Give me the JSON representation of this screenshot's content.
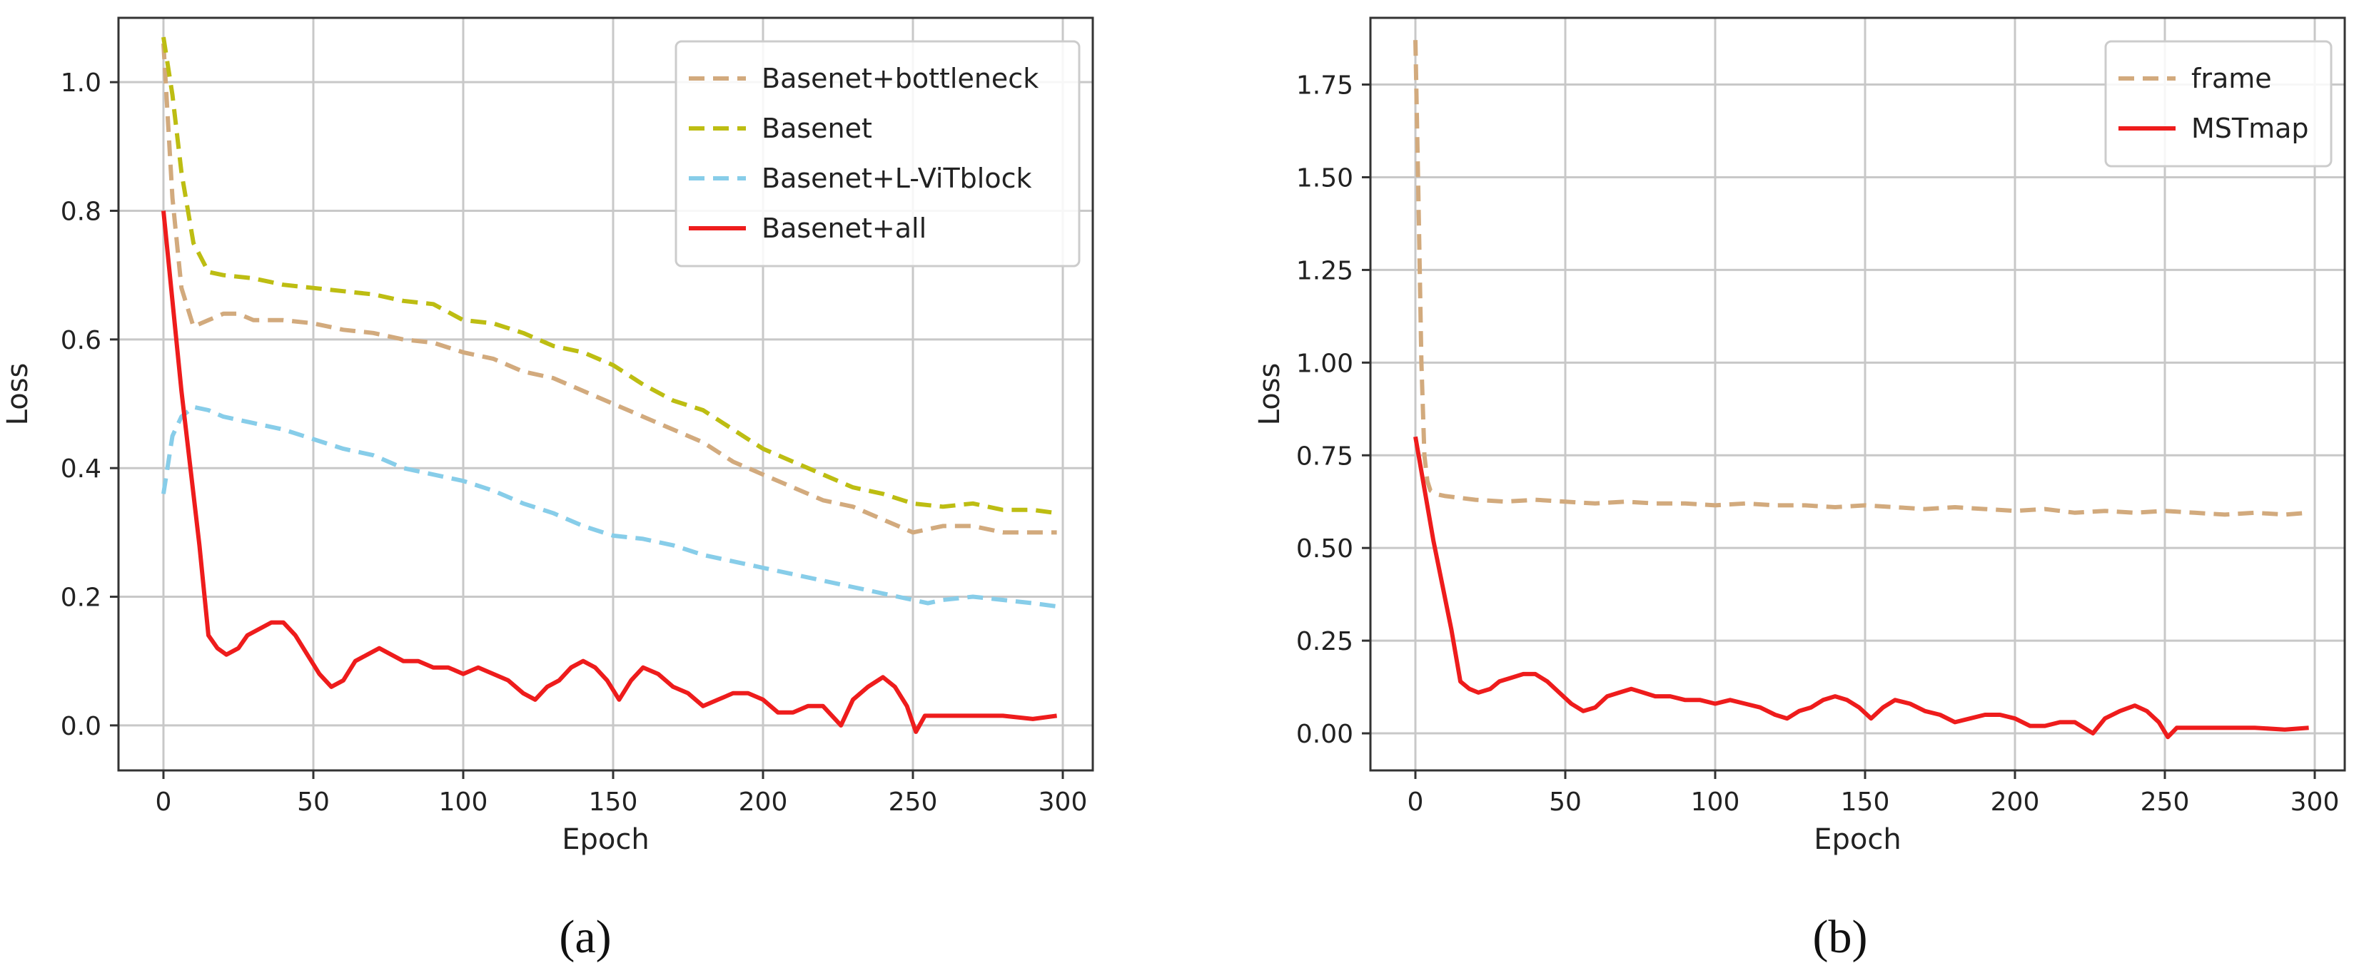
{
  "chart_data": [
    {
      "type": "line",
      "caption": "(a)",
      "xlabel": "Epoch",
      "ylabel": "Loss",
      "xlim": [
        -15,
        310
      ],
      "ylim": [
        -0.07,
        1.1
      ],
      "xticks": [
        0,
        50,
        100,
        150,
        200,
        250,
        300
      ],
      "yticks": [
        0.0,
        0.2,
        0.4,
        0.6,
        0.8,
        1.0
      ],
      "ytick_labels": [
        "0.0",
        "0.2",
        "0.4",
        "0.6",
        "0.8",
        "1.0"
      ],
      "grid": true,
      "legend_position": "top-right",
      "series": [
        {
          "name": "Basenet+bottleneck",
          "color": "#d2aa7d",
          "dash": true,
          "x": [
            0,
            3,
            6,
            10,
            15,
            20,
            25,
            30,
            40,
            50,
            60,
            70,
            80,
            90,
            100,
            110,
            120,
            130,
            140,
            150,
            160,
            170,
            180,
            190,
            200,
            210,
            220,
            230,
            240,
            250,
            260,
            270,
            280,
            290,
            298
          ],
          "y": [
            1.06,
            0.82,
            0.68,
            0.62,
            0.63,
            0.64,
            0.64,
            0.63,
            0.63,
            0.625,
            0.615,
            0.61,
            0.6,
            0.595,
            0.58,
            0.57,
            0.55,
            0.54,
            0.52,
            0.5,
            0.48,
            0.46,
            0.44,
            0.41,
            0.39,
            0.37,
            0.35,
            0.34,
            0.32,
            0.3,
            0.31,
            0.31,
            0.3,
            0.3,
            0.3
          ]
        },
        {
          "name": "Basenet",
          "color": "#bdbd12",
          "dash": true,
          "x": [
            0,
            3,
            6,
            10,
            15,
            20,
            30,
            40,
            50,
            60,
            70,
            80,
            90,
            100,
            110,
            120,
            130,
            140,
            150,
            160,
            170,
            180,
            190,
            200,
            210,
            220,
            230,
            240,
            250,
            260,
            270,
            280,
            290,
            298
          ],
          "y": [
            1.07,
            0.98,
            0.86,
            0.75,
            0.705,
            0.7,
            0.695,
            0.685,
            0.68,
            0.675,
            0.67,
            0.66,
            0.655,
            0.63,
            0.625,
            0.61,
            0.59,
            0.58,
            0.56,
            0.53,
            0.505,
            0.49,
            0.46,
            0.43,
            0.41,
            0.39,
            0.37,
            0.36,
            0.345,
            0.34,
            0.345,
            0.335,
            0.335,
            0.33
          ]
        },
        {
          "name": "Basenet+L-ViTblock",
          "color": "#87cde9",
          "dash": true,
          "x": [
            0,
            3,
            6,
            10,
            15,
            20,
            30,
            40,
            50,
            60,
            70,
            80,
            90,
            100,
            110,
            120,
            130,
            140,
            150,
            160,
            170,
            180,
            190,
            200,
            210,
            220,
            230,
            240,
            250,
            255,
            260,
            270,
            280,
            290,
            298
          ],
          "y": [
            0.36,
            0.45,
            0.48,
            0.495,
            0.49,
            0.48,
            0.47,
            0.46,
            0.445,
            0.43,
            0.42,
            0.4,
            0.39,
            0.38,
            0.365,
            0.345,
            0.33,
            0.31,
            0.295,
            0.29,
            0.28,
            0.265,
            0.255,
            0.245,
            0.235,
            0.225,
            0.215,
            0.205,
            0.195,
            0.19,
            0.195,
            0.2,
            0.195,
            0.19,
            0.185
          ]
        },
        {
          "name": "Basenet+all",
          "color": "#ee1c1c",
          "dash": false,
          "x": [
            0,
            3,
            6,
            9,
            12,
            15,
            18,
            21,
            25,
            28,
            32,
            36,
            40,
            44,
            48,
            52,
            56,
            60,
            64,
            68,
            72,
            76,
            80,
            85,
            90,
            95,
            100,
            105,
            110,
            115,
            120,
            124,
            128,
            132,
            136,
            140,
            144,
            148,
            152,
            156,
            160,
            165,
            170,
            175,
            180,
            185,
            190,
            195,
            200,
            205,
            210,
            215,
            220,
            226,
            230,
            235,
            240,
            244,
            248,
            251,
            254,
            260,
            270,
            280,
            290,
            298
          ],
          "y": [
            0.8,
            0.66,
            0.52,
            0.4,
            0.28,
            0.14,
            0.12,
            0.11,
            0.12,
            0.14,
            0.15,
            0.16,
            0.16,
            0.14,
            0.11,
            0.08,
            0.06,
            0.07,
            0.1,
            0.11,
            0.12,
            0.11,
            0.1,
            0.1,
            0.09,
            0.09,
            0.08,
            0.09,
            0.08,
            0.07,
            0.05,
            0.04,
            0.06,
            0.07,
            0.09,
            0.1,
            0.09,
            0.07,
            0.04,
            0.07,
            0.09,
            0.08,
            0.06,
            0.05,
            0.03,
            0.04,
            0.05,
            0.05,
            0.04,
            0.02,
            0.02,
            0.03,
            0.03,
            0.0,
            0.04,
            0.06,
            0.075,
            0.06,
            0.03,
            -0.01,
            0.015,
            0.015,
            0.015,
            0.015,
            0.01,
            0.015
          ]
        }
      ]
    },
    {
      "type": "line",
      "caption": "(b)",
      "xlabel": "Epoch",
      "ylabel": "Loss",
      "xlim": [
        -15,
        310
      ],
      "ylim": [
        -0.1,
        1.93
      ],
      "xticks": [
        0,
        50,
        100,
        150,
        200,
        250,
        300
      ],
      "yticks": [
        0.0,
        0.25,
        0.5,
        0.75,
        1.0,
        1.25,
        1.5,
        1.75
      ],
      "ytick_labels": [
        "0.00",
        "0.25",
        "0.50",
        "0.75",
        "1.00",
        "1.25",
        "1.50",
        "1.75"
      ],
      "grid": true,
      "legend_position": "top-right",
      "series": [
        {
          "name": "frame",
          "color": "#d2aa7d",
          "dash": true,
          "x": [
            0,
            1,
            2,
            3,
            4,
            5,
            7,
            10,
            15,
            20,
            30,
            40,
            50,
            60,
            70,
            80,
            90,
            100,
            110,
            120,
            130,
            140,
            150,
            160,
            170,
            180,
            190,
            200,
            210,
            220,
            230,
            240,
            250,
            260,
            270,
            280,
            290,
            298
          ],
          "y": [
            1.87,
            1.45,
            1.0,
            0.75,
            0.68,
            0.655,
            0.645,
            0.64,
            0.635,
            0.63,
            0.625,
            0.63,
            0.625,
            0.62,
            0.625,
            0.62,
            0.62,
            0.615,
            0.62,
            0.615,
            0.615,
            0.61,
            0.615,
            0.61,
            0.605,
            0.61,
            0.605,
            0.6,
            0.605,
            0.595,
            0.6,
            0.595,
            0.6,
            0.595,
            0.59,
            0.595,
            0.59,
            0.595
          ]
        },
        {
          "name": "MSTmap",
          "color": "#ee1c1c",
          "dash": false,
          "x": [
            0,
            3,
            6,
            9,
            12,
            15,
            18,
            21,
            25,
            28,
            32,
            36,
            40,
            44,
            48,
            52,
            56,
            60,
            64,
            68,
            72,
            76,
            80,
            85,
            90,
            95,
            100,
            105,
            110,
            115,
            120,
            124,
            128,
            132,
            136,
            140,
            144,
            148,
            152,
            156,
            160,
            165,
            170,
            175,
            180,
            185,
            190,
            195,
            200,
            205,
            210,
            215,
            220,
            226,
            230,
            235,
            240,
            244,
            248,
            251,
            254,
            260,
            270,
            280,
            290,
            298
          ],
          "y": [
            0.8,
            0.66,
            0.52,
            0.4,
            0.28,
            0.14,
            0.12,
            0.11,
            0.12,
            0.14,
            0.15,
            0.16,
            0.16,
            0.14,
            0.11,
            0.08,
            0.06,
            0.07,
            0.1,
            0.11,
            0.12,
            0.11,
            0.1,
            0.1,
            0.09,
            0.09,
            0.08,
            0.09,
            0.08,
            0.07,
            0.05,
            0.04,
            0.06,
            0.07,
            0.09,
            0.1,
            0.09,
            0.07,
            0.04,
            0.07,
            0.09,
            0.08,
            0.06,
            0.05,
            0.03,
            0.04,
            0.05,
            0.05,
            0.04,
            0.02,
            0.02,
            0.03,
            0.03,
            0.0,
            0.04,
            0.06,
            0.075,
            0.06,
            0.03,
            -0.01,
            0.015,
            0.015,
            0.015,
            0.015,
            0.01,
            0.015
          ]
        }
      ]
    }
  ]
}
